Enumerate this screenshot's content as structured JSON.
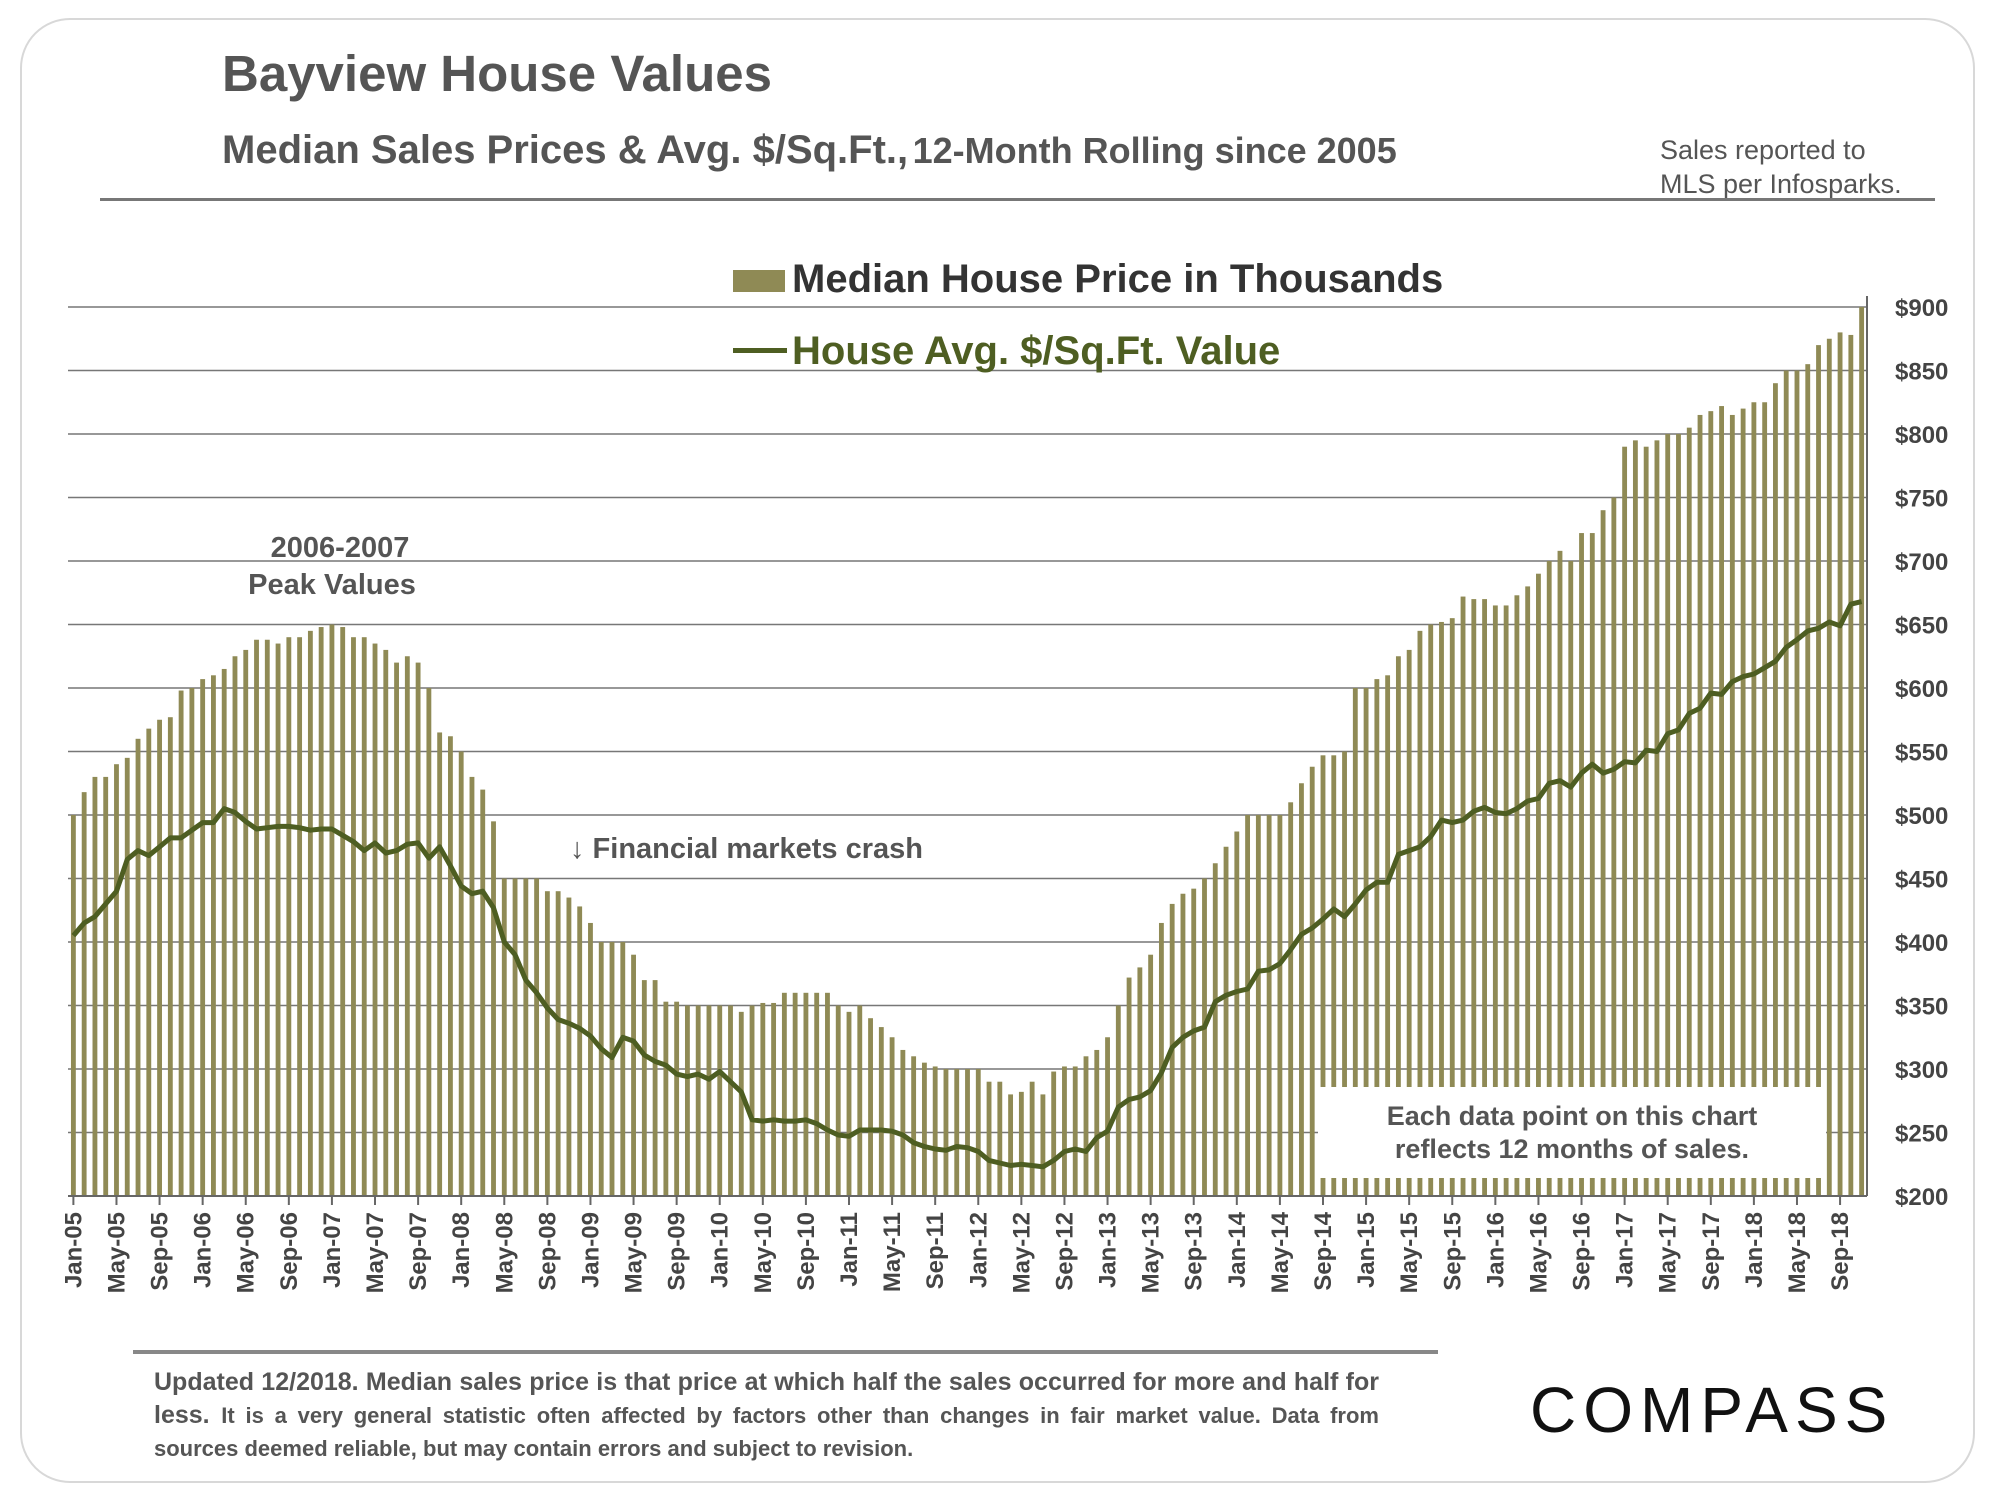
{
  "header": {
    "title": "Bayview House Values",
    "subtitle_main": "Median Sales Prices & Avg. $/Sq.Ft.,",
    "subtitle_rolling": "12-Month Rolling since 2005",
    "source_line1": "Sales reported to",
    "source_line2": "MLS per Infosparks."
  },
  "footer": {
    "lead": "Updated 12/2018. Median sales price is that price at which half the sales occurred for more and half for less.",
    "rest": "It is a very general statistic often affected by factors other than changes in fair market value. Data from sources deemed reliable, but may contain errors and subject to revision."
  },
  "brand": {
    "logo": "COMPASS"
  },
  "colors": {
    "bar": "#8f8a55",
    "line": "#4e5e22",
    "grid": "#777777",
    "text": "#555555"
  },
  "chart_data": {
    "type": "bar",
    "title": "Bayview House Values",
    "ylim": [
      200,
      900
    ],
    "yticks": [
      "$200",
      "$250",
      "$300",
      "$350",
      "$400",
      "$450",
      "$500",
      "$550",
      "$600",
      "$650",
      "$700",
      "$750",
      "$800",
      "$850",
      "$900"
    ],
    "x_tick_labels": [
      "Jan-05",
      "May-05",
      "Sep-05",
      "Jan-06",
      "May-06",
      "Sep-06",
      "Jan-07",
      "May-07",
      "Sep-07",
      "Jan-08",
      "May-08",
      "Sep-08",
      "Jan-09",
      "May-09",
      "Sep-09",
      "Jan-10",
      "May-10",
      "Sep-10",
      "Jan-11",
      "May-11",
      "Sep-11",
      "Jan-12",
      "May-12",
      "Sep-12",
      "Jan-13",
      "May-13",
      "Sep-13",
      "Jan-14",
      "May-14",
      "Sep-14",
      "Jan-15",
      "May-15",
      "Sep-15",
      "Jan-16",
      "May-16",
      "Sep-16",
      "Jan-17",
      "May-17",
      "Sep-17",
      "Jan-18",
      "May-18",
      "Sep-18"
    ],
    "x_start": "Jan-05",
    "x_end": "Dec-18",
    "legend": [
      "Median House Price in Thousands",
      "House Avg. $/Sq.Ft. Value"
    ],
    "annotations": {
      "peak_line1": "2006-2007",
      "peak_line2": "Peak Values",
      "crash": "↓ Financial markets crash",
      "note_line1": "Each data point on this chart",
      "note_line2": "reflects 12 months of sales."
    },
    "series": [
      {
        "name": "Median House Price in Thousands",
        "type": "bar",
        "values": [
          500,
          518,
          530,
          530,
          540,
          545,
          560,
          568,
          575,
          577,
          598,
          600,
          607,
          610,
          615,
          625,
          630,
          638,
          638,
          635,
          640,
          640,
          645,
          648,
          650,
          648,
          640,
          640,
          635,
          630,
          620,
          625,
          620,
          600,
          565,
          562,
          550,
          530,
          520,
          495,
          450,
          450,
          450,
          450,
          440,
          440,
          435,
          428,
          415,
          400,
          400,
          400,
          390,
          370,
          370,
          353,
          353,
          350,
          350,
          350,
          350,
          350,
          345,
          350,
          352,
          352,
          360,
          360,
          360,
          360,
          360,
          350,
          345,
          350,
          340,
          333,
          325,
          315,
          310,
          305,
          302,
          300,
          300,
          300,
          300,
          290,
          290,
          280,
          282,
          290,
          280,
          298,
          302,
          302,
          310,
          315,
          325,
          350,
          372,
          380,
          390,
          415,
          430,
          438,
          442,
          450,
          462,
          475,
          487,
          500,
          500,
          500,
          500,
          510,
          525,
          538,
          547,
          547,
          550,
          600,
          600,
          607,
          610,
          625,
          630,
          645,
          650,
          652,
          655,
          672,
          670,
          670,
          665,
          665,
          673,
          680,
          690,
          700,
          708,
          700,
          722,
          722,
          740,
          750,
          790,
          795,
          790,
          795,
          800,
          800,
          805,
          815,
          818,
          822,
          815,
          820,
          825,
          825,
          840,
          850,
          850,
          855,
          870,
          875,
          880,
          878,
          900
        ]
      },
      {
        "name": "House Avg. $/Sq.Ft. Value",
        "type": "line",
        "values": [
          405,
          415,
          420,
          430,
          440,
          465,
          472,
          468,
          475,
          482,
          482,
          488,
          494,
          494,
          505,
          502,
          495,
          489,
          490,
          491,
          491,
          490,
          488,
          489,
          489,
          484,
          479,
          472,
          478,
          470,
          472,
          477,
          478,
          466,
          475,
          460,
          444,
          438,
          440,
          427,
          400,
          390,
          370,
          360,
          348,
          339,
          336,
          332,
          326,
          316,
          309,
          325,
          322,
          311,
          306,
          303,
          296,
          294,
          296,
          292,
          298,
          290,
          282,
          260,
          259,
          260,
          259,
          259,
          260,
          257,
          252,
          248,
          247,
          252,
          252,
          252,
          251,
          248,
          242,
          239,
          237,
          236,
          239,
          238,
          235,
          228,
          226,
          224,
          225,
          224,
          223,
          228,
          235,
          237,
          235,
          246,
          251,
          270,
          276,
          278,
          283,
          297,
          317,
          325,
          330,
          333,
          353,
          358,
          361,
          363,
          377,
          378,
          383,
          394,
          406,
          411,
          418,
          426,
          420,
          430,
          441,
          447,
          447,
          469,
          472,
          475,
          483,
          496,
          494,
          496,
          503,
          506,
          502,
          501,
          505,
          511,
          513,
          525,
          527,
          522,
          533,
          540,
          533,
          536,
          542,
          541,
          551,
          550,
          564,
          567,
          580,
          584,
          596,
          595,
          605,
          609,
          611,
          616,
          621,
          632,
          638,
          645,
          647,
          652,
          649,
          666,
          668
        ]
      }
    ]
  }
}
